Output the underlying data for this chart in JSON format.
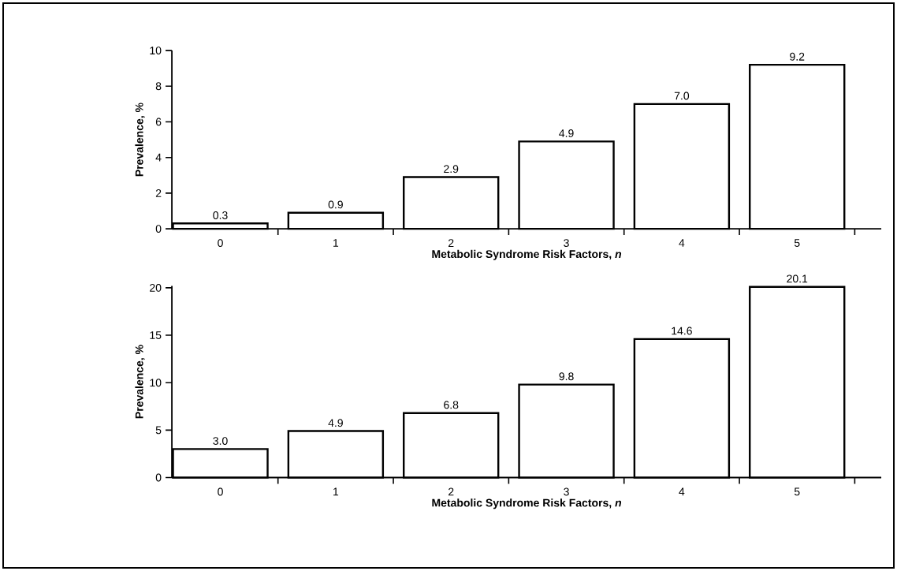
{
  "chart_data": [
    {
      "type": "bar",
      "categories": [
        "0",
        "1",
        "2",
        "3",
        "4",
        "5"
      ],
      "values": [
        0.3,
        0.9,
        2.9,
        4.9,
        7.0,
        9.2
      ],
      "value_labels": [
        "0.3",
        "0.9",
        "2.9",
        "4.9",
        "7.0",
        "9.2"
      ],
      "color": "#ffffff",
      "ylim": [
        0,
        10
      ],
      "yticks": [
        0,
        2,
        4,
        6,
        8,
        10
      ],
      "xlabel": "Metabolic Syndrome Risk Factors, *n*",
      "ylabel": "Prevalence, %"
    },
    {
      "type": "bar",
      "categories": [
        "0",
        "1",
        "2",
        "3",
        "4",
        "5"
      ],
      "values": [
        3.0,
        4.9,
        6.8,
        9.8,
        14.6,
        20.1
      ],
      "value_labels": [
        "3.0",
        "4.9",
        "6.8",
        "9.8",
        "14.6",
        "20.1"
      ],
      "color": "#ffffff",
      "ylim": [
        0,
        20.2
      ],
      "yticks": [
        0,
        5,
        10,
        15,
        20
      ],
      "xlabel": "Metabolic Syndrome Risk Factors, *n*",
      "ylabel": "Prevalence, %"
    }
  ]
}
